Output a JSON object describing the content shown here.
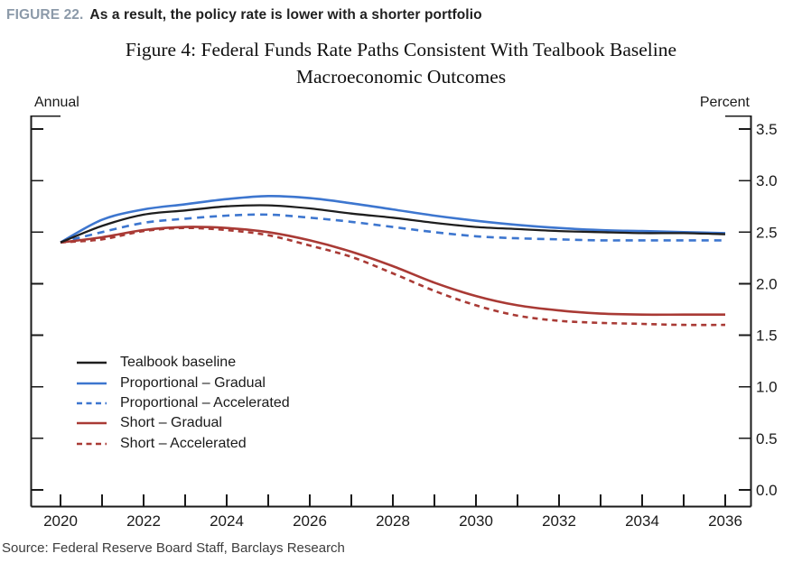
{
  "header": {
    "figure_label": "FIGURE 22.",
    "figure_title": "As a result, the policy rate is lower with a shorter portfolio"
  },
  "chart": {
    "title_line1": "Figure 4: Federal Funds Rate Paths Consistent With Tealbook Baseline",
    "title_line2": "Macroeconomic Outcomes",
    "left_unit_label": "Annual",
    "right_unit_label": "Percent"
  },
  "source": "Source: Federal Reserve Board Staff, Barclays Research",
  "colors": {
    "figure_label": "#8c9aa9",
    "header_text": "#1f1f1f",
    "axis": "#1a1a1a",
    "tick_text": "#1a1a1a",
    "black_line": "#1e1e1e",
    "blue": "#3d76cf",
    "red": "#a93a35",
    "source_text": "#3d3d3d"
  },
  "chart_data": {
    "type": "line",
    "x": [
      2020,
      2021,
      2022,
      2023,
      2024,
      2025,
      2026,
      2027,
      2028,
      2029,
      2030,
      2031,
      2032,
      2033,
      2034,
      2035,
      2036
    ],
    "x_label_years": [
      2020,
      2022,
      2024,
      2026,
      2028,
      2030,
      2032,
      2034,
      2036
    ],
    "y_ticks": [
      0.0,
      0.5,
      1.0,
      1.5,
      2.0,
      2.5,
      3.0,
      3.5
    ],
    "ylim": [
      0.0,
      3.5
    ],
    "xlabel": "",
    "ylabel_left": "Annual",
    "ylabel_right": "Percent",
    "grid": false,
    "legend_position": "inside bottom-left",
    "series": [
      {
        "name": "Tealbook baseline",
        "color_key": "black_line",
        "style": "solid",
        "values": [
          2.4,
          2.56,
          2.67,
          2.71,
          2.75,
          2.76,
          2.73,
          2.68,
          2.64,
          2.59,
          2.55,
          2.53,
          2.51,
          2.5,
          2.49,
          2.49,
          2.48
        ]
      },
      {
        "name": "Proportional – Gradual",
        "color_key": "blue",
        "style": "solid",
        "values": [
          2.4,
          2.62,
          2.72,
          2.77,
          2.82,
          2.85,
          2.83,
          2.78,
          2.72,
          2.66,
          2.61,
          2.57,
          2.54,
          2.52,
          2.51,
          2.5,
          2.49
        ]
      },
      {
        "name": "Proportional – Accelerated",
        "color_key": "blue",
        "style": "dashed",
        "values": [
          2.4,
          2.5,
          2.59,
          2.63,
          2.66,
          2.67,
          2.64,
          2.6,
          2.55,
          2.5,
          2.46,
          2.44,
          2.43,
          2.42,
          2.42,
          2.42,
          2.42
        ]
      },
      {
        "name": "Short – Gradual",
        "color_key": "red",
        "style": "solid",
        "values": [
          2.4,
          2.45,
          2.52,
          2.55,
          2.54,
          2.5,
          2.42,
          2.31,
          2.17,
          2.01,
          1.88,
          1.79,
          1.74,
          1.71,
          1.7,
          1.7,
          1.7
        ]
      },
      {
        "name": "Short – Accelerated",
        "color_key": "red",
        "style": "dashed",
        "values": [
          2.4,
          2.43,
          2.51,
          2.54,
          2.52,
          2.47,
          2.37,
          2.26,
          2.1,
          1.93,
          1.79,
          1.69,
          1.64,
          1.62,
          1.61,
          1.6,
          1.6
        ]
      }
    ]
  }
}
